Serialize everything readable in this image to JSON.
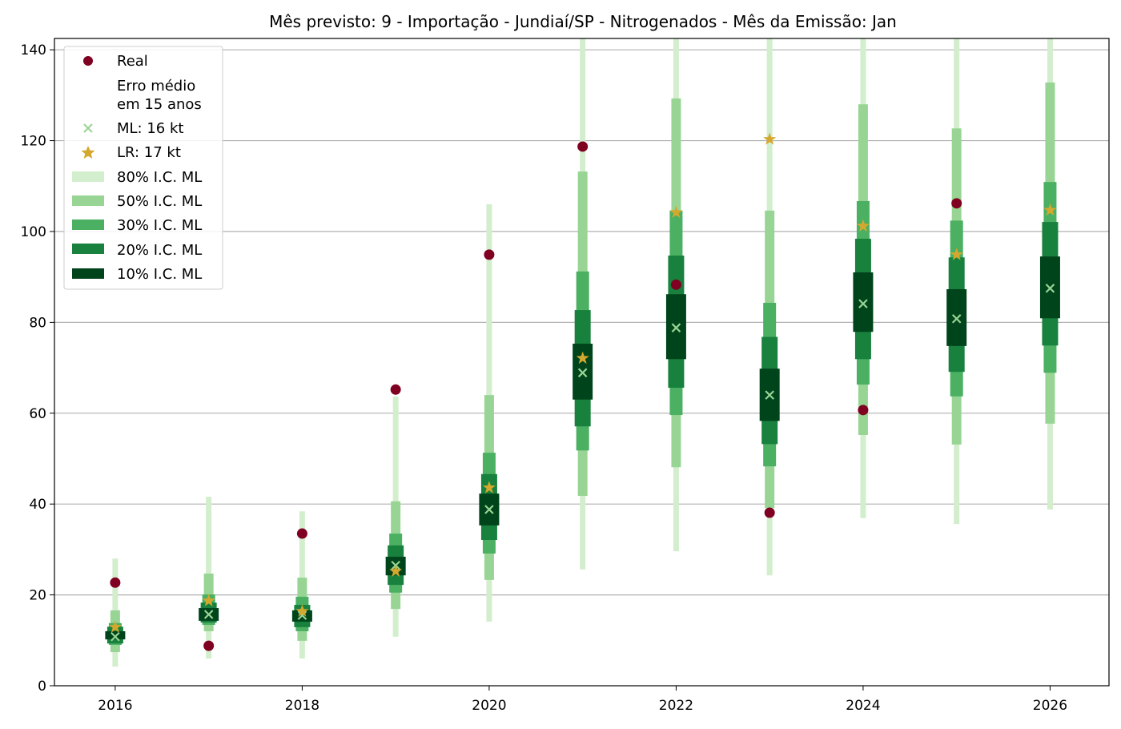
{
  "chart_data": {
    "type": "interval-plot",
    "title": "Mês previsto: 9 - Importação - Jundiaí/SP - Nitrogenados - Mês da Emissão: Jan",
    "xlabel": "",
    "ylabel": "",
    "xlim": [
      2015.35,
      2026.63
    ],
    "ylim": [
      0,
      142.5
    ],
    "grid": "horizontal",
    "legend_position": "top-left",
    "x_ticks": [
      "2016",
      "2018",
      "2020",
      "2022",
      "2024",
      "2026"
    ],
    "y_ticks": [
      "0",
      "20",
      "40",
      "60",
      "80",
      "100",
      "120",
      "140"
    ],
    "legend": {
      "real": "Real",
      "erro_header": "Erro médio\nem 15 anos",
      "erro_line1": "Erro médio",
      "erro_line2": "em 15 anos",
      "ml": "ML: 16 kt",
      "lr": "LR: 17 kt",
      "ci80": "80% I.C. ML",
      "ci50": "50% I.C. ML",
      "ci30": "30% I.C. ML",
      "ci20": "20% I.C. ML",
      "ci10": "10% I.C. ML"
    },
    "colors": {
      "real": "#7f0020",
      "ml": "#98d594",
      "lr": "#d4a82e",
      "ci80": "#d3eecd",
      "ci50": "#98d594",
      "ci30": "#4bb062",
      "ci20": "#17813d",
      "ci10": "#00441b"
    },
    "years": [
      2016,
      2017,
      2018,
      2019,
      2020,
      2021,
      2022,
      2023,
      2024,
      2025,
      2026
    ],
    "ci80": [
      [
        4.2,
        28.0
      ],
      [
        6.0,
        41.6
      ],
      [
        6.0,
        38.4
      ],
      [
        10.8,
        63.7
      ],
      [
        14.1,
        106.0
      ],
      [
        25.6,
        145
      ],
      [
        29.6,
        145
      ],
      [
        24.3,
        145
      ],
      [
        36.9,
        145
      ],
      [
        35.6,
        145
      ],
      [
        38.8,
        145
      ]
    ],
    "ci50": [
      [
        7.4,
        16.6
      ],
      [
        12.0,
        24.7
      ],
      [
        9.9,
        23.8
      ],
      [
        16.9,
        40.6
      ],
      [
        23.3,
        64.0
      ],
      [
        41.8,
        113.2
      ],
      [
        48.1,
        129.3
      ],
      [
        39.1,
        104.6
      ],
      [
        55.2,
        128.0
      ],
      [
        53.1,
        122.7
      ],
      [
        57.7,
        132.8
      ]
    ],
    "ci30": [
      [
        9.0,
        13.8
      ],
      [
        13.4,
        20.1
      ],
      [
        12.0,
        19.6
      ],
      [
        20.5,
        33.5
      ],
      [
        29.1,
        51.3
      ],
      [
        51.8,
        91.2
      ],
      [
        59.6,
        104.6
      ],
      [
        48.3,
        84.3
      ],
      [
        66.3,
        106.7
      ],
      [
        63.7,
        102.4
      ],
      [
        68.9,
        110.9
      ]
    ],
    "ci20": [
      [
        9.3,
        13.0
      ],
      [
        13.9,
        18.3
      ],
      [
        12.9,
        17.8
      ],
      [
        22.2,
        30.9
      ],
      [
        32.1,
        46.6
      ],
      [
        57.1,
        82.7
      ],
      [
        65.6,
        94.7
      ],
      [
        53.2,
        76.8
      ],
      [
        71.9,
        98.4
      ],
      [
        69.1,
        94.3
      ],
      [
        74.9,
        102.1
      ]
    ],
    "ci10": [
      [
        10.2,
        12.0
      ],
      [
        14.3,
        17.1
      ],
      [
        14.1,
        16.6
      ],
      [
        24.3,
        28.4
      ],
      [
        35.3,
        42.3
      ],
      [
        63.0,
        75.3
      ],
      [
        71.9,
        86.2
      ],
      [
        58.3,
        69.8
      ],
      [
        77.9,
        91.0
      ],
      [
        74.8,
        87.3
      ],
      [
        80.9,
        94.5
      ]
    ],
    "ml": [
      10.8,
      15.7,
      15.5,
      26.5,
      38.8,
      68.9,
      78.8,
      64.0,
      84.1,
      80.8,
      87.5
    ],
    "lr": [
      12.9,
      18.7,
      16.4,
      25.2,
      43.6,
      72.1,
      104.2,
      120.3,
      101.2,
      94.9,
      104.7
    ],
    "real": [
      22.7,
      8.8,
      33.5,
      65.2,
      94.9,
      118.7,
      88.3,
      38.1,
      60.7,
      106.2,
      null
    ]
  }
}
